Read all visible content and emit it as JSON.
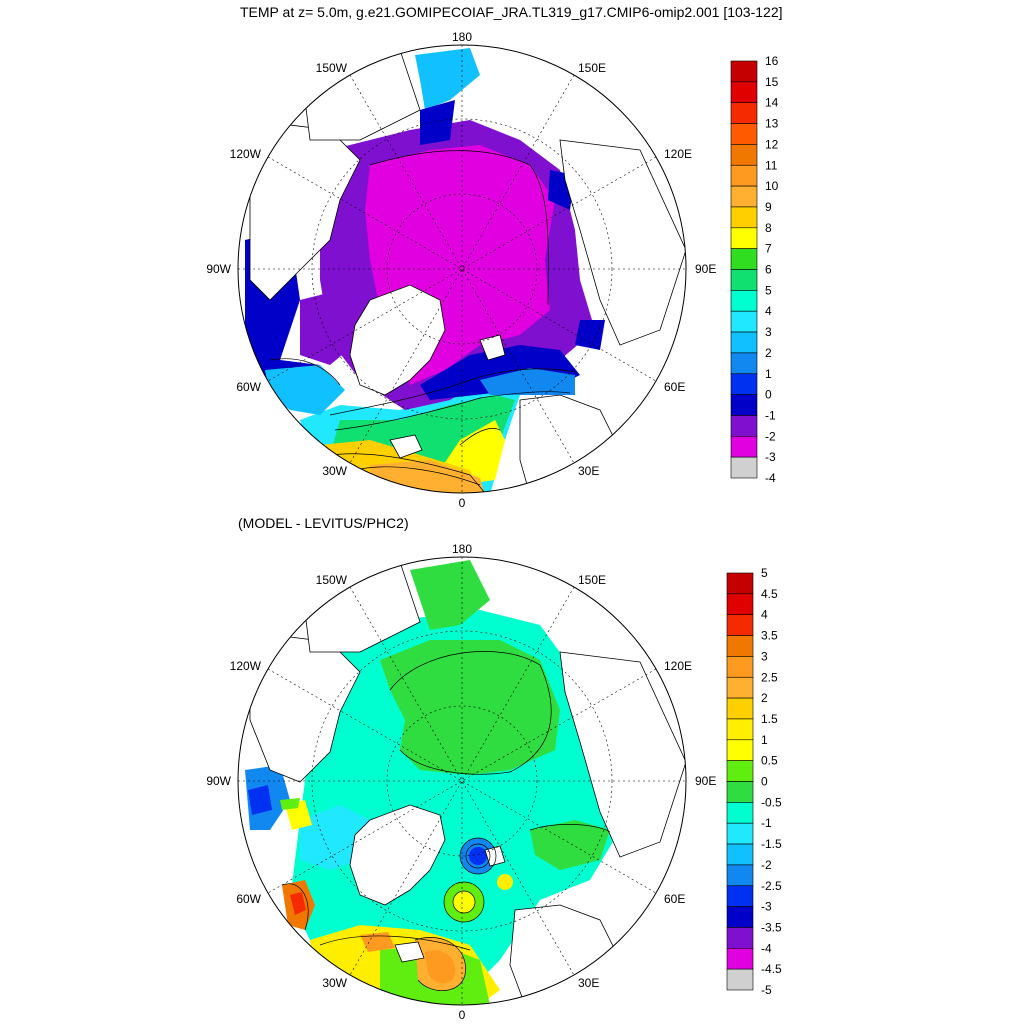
{
  "titles": {
    "main": "TEMP at z=   5.0m, g.e21.GOMIPECOIAF_JRA.TL319_g17.CMIP6-omip2.001 [103-122]",
    "difference": "(MODEL - LEVITUS/PHC2)"
  },
  "meridian_labels": [
    "180",
    "150E",
    "120E",
    "90E",
    "60E",
    "30E",
    "0",
    "30W",
    "60W",
    "90W",
    "120W",
    "150W"
  ],
  "panels": [
    {
      "name": "model-temperature",
      "colorbar": {
        "labels": [
          "16",
          "15",
          "14",
          "13",
          "12",
          "11",
          "10",
          "9",
          "8",
          "7",
          "6",
          "5",
          "4",
          "3",
          "2",
          "1",
          "0",
          "-1",
          "-2",
          "-3",
          "-4"
        ],
        "colors": [
          "#c40000",
          "#e00000",
          "#f52a00",
          "#ff5a00",
          "#f07800",
          "#ff9a20",
          "#ffb030",
          "#ffd000",
          "#ffff00",
          "#30dd20",
          "#10e070",
          "#00ffd0",
          "#20e8ff",
          "#10c0ff",
          "#1088f0",
          "#0030f0",
          "#0000c8",
          "#8010d0",
          "#e000e0",
          "#d0d0d0",
          "#707070"
        ]
      }
    },
    {
      "name": "model-minus-levitus",
      "colorbar": {
        "labels": [
          "5",
          "4.5",
          "4",
          "3.5",
          "3",
          "2.5",
          "2",
          "1.5",
          "1",
          "0.5",
          "0",
          "-0.5",
          "-1",
          "-1.5",
          "-2",
          "-2.5",
          "-3",
          "-3.5",
          "-4",
          "-4.5",
          "-5"
        ],
        "colors": [
          "#c40000",
          "#e00000",
          "#f52a00",
          "#f07800",
          "#ff9a20",
          "#ffb030",
          "#ffd000",
          "#ffee00",
          "#ffff00",
          "#60ee10",
          "#30dd40",
          "#00ffd0",
          "#20e8ff",
          "#10c0ff",
          "#1088f0",
          "#0030f0",
          "#0000c8",
          "#8010d0",
          "#e000e0",
          "#d0d0d0",
          "#707070"
        ]
      }
    }
  ]
}
